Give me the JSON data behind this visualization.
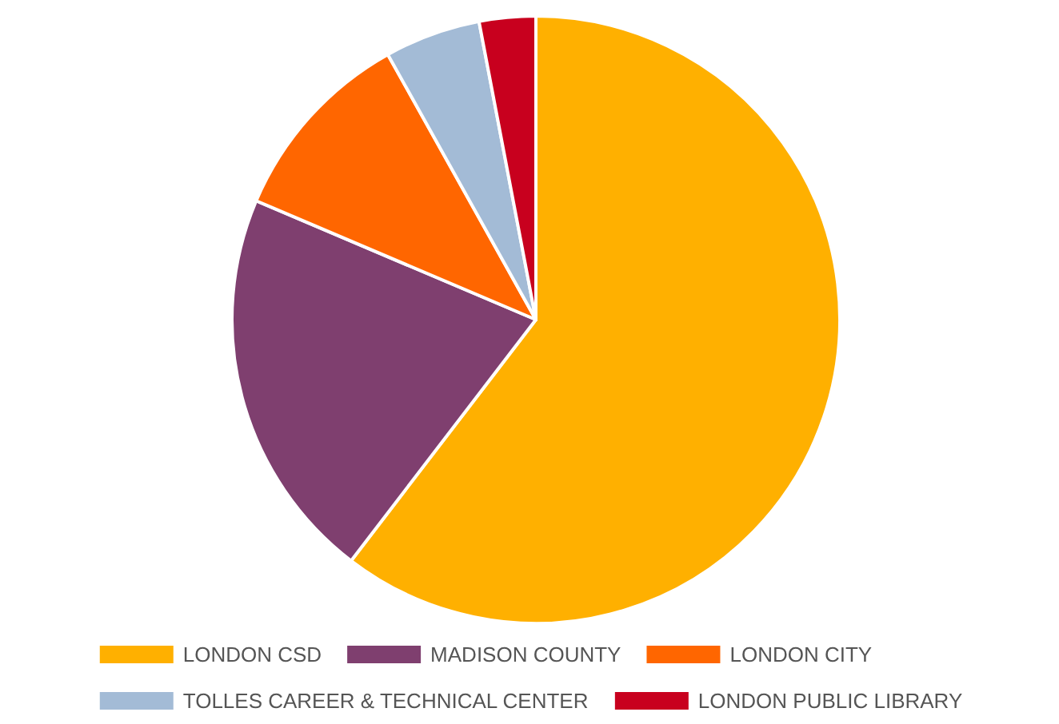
{
  "chart_data": {
    "type": "pie",
    "categories": [
      "LONDON CSD",
      "MADISON COUNTY",
      "LONDON CITY",
      "TOLLES CAREER & TECHNICAL CENTER",
      "LONDON PUBLIC LIBRARY"
    ],
    "values": [
      60.4,
      21.0,
      10.5,
      5.1,
      3.0
    ],
    "colors": [
      "#ffb000",
      "#7f3f6f",
      "#ff6600",
      "#a3bbd6",
      "#c8001e"
    ],
    "legend": "bottom"
  }
}
